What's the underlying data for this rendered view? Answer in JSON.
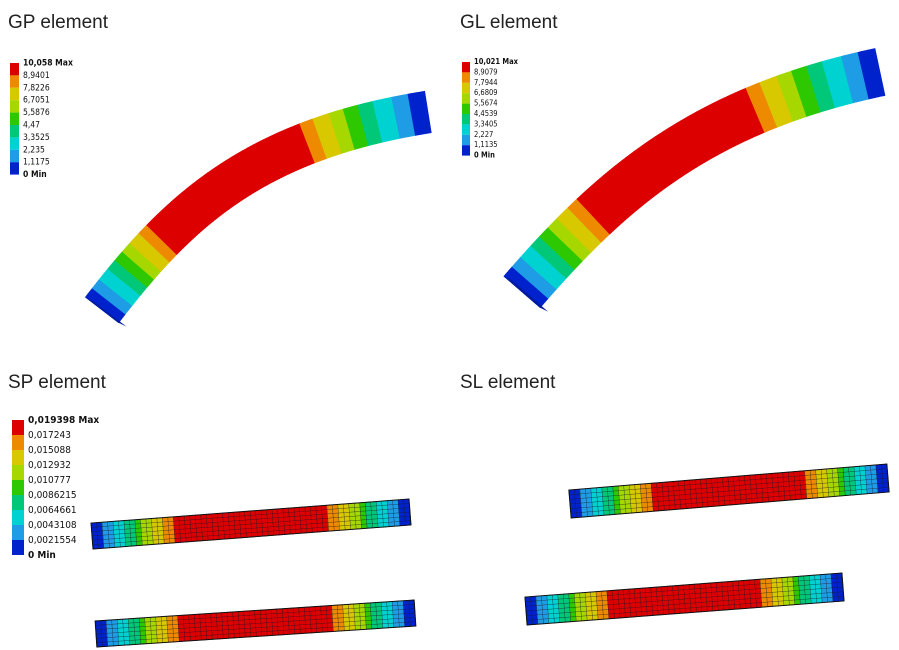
{
  "panels": [
    {
      "title": "GP element",
      "legend": [
        "10,058 Max",
        "8,9401",
        "7,8226",
        "6,7051",
        "5,5876",
        "4,47",
        "3,3525",
        "2,235",
        "1,1175",
        "0 Min"
      ]
    },
    {
      "title": "GL element",
      "legend": [
        "10,021 Max",
        "8,9079",
        "7,7944",
        "6,6809",
        "5,5674",
        "4,4539",
        "3,3405",
        "2,227",
        "1,1135",
        "0 Min"
      ]
    },
    {
      "title": "SP element",
      "legend": [
        "0,019398 Max",
        "0,017243",
        "0,015088",
        "0,012932",
        "0,010777",
        "0,0086215",
        "0,0064661",
        "0,0043108",
        "0,0021554",
        "0 Min"
      ]
    },
    {
      "title": "SL element"
    }
  ]
}
